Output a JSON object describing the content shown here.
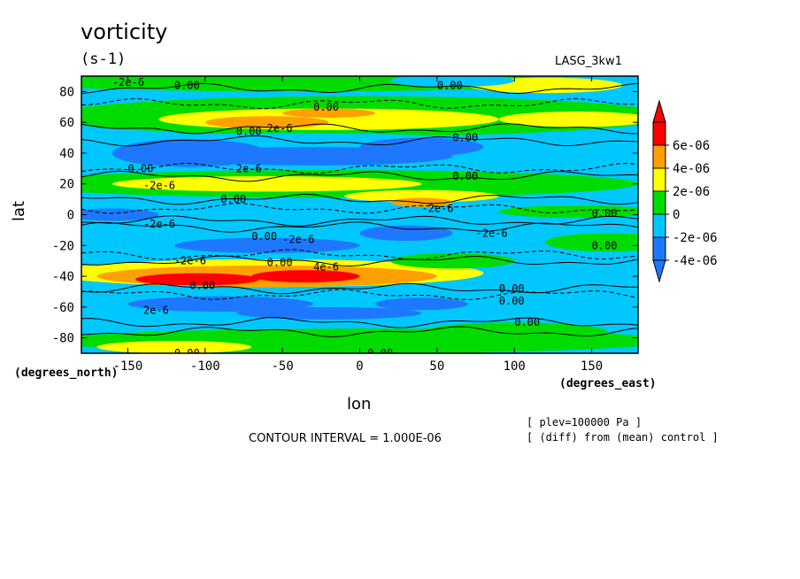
{
  "chart_data": {
    "type": "heatmap",
    "title": "vorticity",
    "units": "(s-1)",
    "dataset": "LASG_3kw1",
    "xlabel": "lon",
    "ylabel": "lat",
    "x_units": "(degrees_east)",
    "y_units": "(degrees_north)",
    "xlim": [
      -180,
      180
    ],
    "ylim": [
      -90,
      90
    ],
    "x_ticks": [
      -150,
      -100,
      -50,
      0,
      50,
      100,
      150
    ],
    "x_tick_labels": [
      "-150",
      "-100",
      "-50",
      "0",
      "50",
      "100",
      "150"
    ],
    "y_ticks": [
      80,
      60,
      40,
      20,
      0,
      -20,
      -40,
      -60,
      -80
    ],
    "y_tick_labels": [
      "80",
      "60",
      "40",
      "20",
      "0",
      "-20",
      "-40",
      "-60",
      "-80"
    ],
    "contour_interval_label": "CONTOUR INTERVAL = 1.000E-06",
    "notes": [
      "[ plev=100000 Pa ]",
      "[ (diff) from (mean) control ]"
    ],
    "colorbar": {
      "labels": [
        "6e-06",
        "4e-06",
        "2e-06",
        "0",
        "-2e-06",
        "-4e-06"
      ],
      "levels": [
        -6e-06,
        -4e-06,
        -2e-06,
        0,
        2e-06,
        4e-06,
        6e-06
      ],
      "colors": [
        "#1e78ff",
        "#00c8ff",
        "#00dc00",
        "#ffff00",
        "#ffa000",
        "#ff0000"
      ],
      "extend": "both"
    },
    "bands": [
      {
        "lat_from": 90,
        "lat_to": 82,
        "level": "-2e-06 to 0"
      },
      {
        "lat_from": 82,
        "lat_to": 70,
        "level": "0 to 2e-06"
      },
      {
        "lat_from": 70,
        "lat_to": 54,
        "level": "2e-06 to 4e-06"
      },
      {
        "lat_from": 54,
        "lat_to": 26,
        "level": "-4e-06 to -2e-06"
      },
      {
        "lat_from": 26,
        "lat_to": 12,
        "level": "2e-06 to 4e-06"
      },
      {
        "lat_from": 12,
        "lat_to": 4,
        "level": "-2e-06 to 0"
      },
      {
        "lat_from": 4,
        "lat_to": -4,
        "level": "-2e-06 to 0"
      },
      {
        "lat_from": -4,
        "lat_to": -30,
        "level": "-4e-06 to -2e-06"
      },
      {
        "lat_from": -30,
        "lat_to": -48,
        "level": "4e-06 to 6e-06"
      },
      {
        "lat_from": -48,
        "lat_to": -72,
        "level": "-4e-06 to -2e-06"
      },
      {
        "lat_from": -72,
        "lat_to": -90,
        "level": "0 to 2e-06"
      }
    ],
    "contour_labels": [
      "-2e-6",
      "0.00",
      "2e-6",
      "-4e-6",
      "4e-6"
    ]
  }
}
